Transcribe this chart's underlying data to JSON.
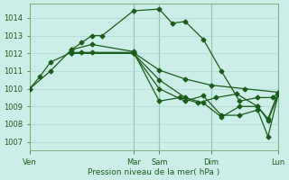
{
  "bg_color": "#cceee8",
  "grid_color": "#aad8d0",
  "line_color": "#1a5c1a",
  "xlabel": "Pression niveau de la mer( hPa )",
  "ylim": [
    1006.5,
    1014.8
  ],
  "yticks": [
    1007,
    1008,
    1009,
    1010,
    1011,
    1012,
    1013,
    1014
  ],
  "xtick_labels": [
    "Ven",
    "Mar",
    "Sam",
    "Dim",
    "Lun"
  ],
  "xtick_positions": [
    0,
    40,
    50,
    70,
    96
  ],
  "xlim": [
    0,
    96
  ],
  "vlines": [
    0,
    40,
    50,
    70,
    96
  ],
  "series1_x": [
    0,
    4,
    8,
    16,
    20,
    24,
    40,
    50,
    60,
    70,
    83,
    96
  ],
  "series1_y": [
    1010.0,
    1010.7,
    1011.5,
    1012.05,
    1012.05,
    1012.05,
    1012.05,
    1011.05,
    1010.55,
    1010.2,
    1010.0,
    1009.8
  ],
  "series2_x": [
    16,
    20,
    24,
    28,
    40,
    50,
    55,
    60,
    67,
    74,
    81,
    88,
    94,
    96
  ],
  "series2_y": [
    1012.2,
    1012.6,
    1013.0,
    1013.0,
    1014.4,
    1014.5,
    1013.7,
    1013.8,
    1012.8,
    1011.0,
    1009.3,
    1009.5,
    1009.5,
    1009.8
  ],
  "series3_x": [
    0,
    8,
    16,
    24,
    40,
    50,
    58,
    65,
    72,
    80,
    88,
    92,
    96
  ],
  "series3_y": [
    1010.0,
    1011.0,
    1012.2,
    1012.5,
    1012.1,
    1009.3,
    1009.5,
    1009.2,
    1009.5,
    1009.7,
    1009.0,
    1008.2,
    1009.7
  ],
  "series4_x": [
    16,
    40,
    50,
    60,
    67,
    74,
    81,
    88,
    92,
    96
  ],
  "series4_y": [
    1012.0,
    1012.0,
    1010.5,
    1009.5,
    1009.2,
    1008.4,
    1009.0,
    1009.0,
    1008.3,
    1009.8
  ],
  "series5_x": [
    16,
    40,
    50,
    60,
    67,
    74,
    81,
    88,
    92,
    96
  ],
  "series5_y": [
    1012.0,
    1012.0,
    1010.0,
    1009.3,
    1009.6,
    1008.5,
    1008.5,
    1008.8,
    1007.3,
    1009.7
  ],
  "marker_size": 2.5,
  "line_width": 0.9
}
